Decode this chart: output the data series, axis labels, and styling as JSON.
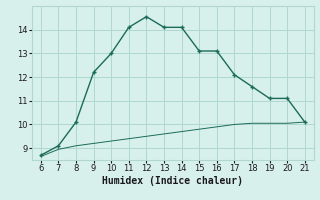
{
  "xlabel": "Humidex (Indice chaleur)",
  "x_main": [
    6,
    7,
    8,
    9,
    10,
    11,
    12,
    13,
    14,
    15,
    16,
    17,
    18,
    19,
    20,
    21
  ],
  "y_main": [
    8.7,
    9.1,
    10.1,
    12.2,
    13.0,
    14.1,
    14.55,
    14.1,
    14.1,
    13.1,
    13.1,
    12.1,
    11.6,
    11.1,
    11.1,
    10.1
  ],
  "x_base": [
    6,
    7,
    8,
    9,
    10,
    11,
    12,
    13,
    14,
    15,
    16,
    17,
    18,
    19,
    20,
    21
  ],
  "y_base": [
    8.65,
    8.95,
    9.1,
    9.2,
    9.3,
    9.4,
    9.5,
    9.6,
    9.7,
    9.8,
    9.9,
    10.0,
    10.05,
    10.05,
    10.05,
    10.1
  ],
  "line_color": "#1a6b5a",
  "background_color": "#d8f0ec",
  "grid_color": "#b0d8d0",
  "text_color": "#1a1a1a",
  "xlim": [
    5.5,
    21.5
  ],
  "ylim": [
    8.5,
    15.0
  ],
  "xticks": [
    6,
    7,
    8,
    9,
    10,
    11,
    12,
    13,
    14,
    15,
    16,
    17,
    18,
    19,
    20,
    21
  ],
  "yticks": [
    9,
    10,
    11,
    12,
    13,
    14
  ]
}
